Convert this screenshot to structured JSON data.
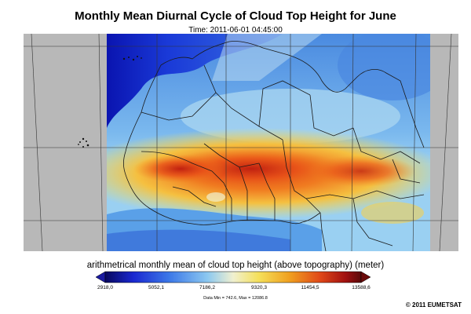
{
  "title": "Monthly Mean Diurnal Cycle of Cloud Top Height for June",
  "subtitle": "Time: 2011-06-01 04:45:00",
  "legend": {
    "label": "arithmetrical monthly mean of cloud top height (above topography) (meter)",
    "ticks": [
      "2918,0",
      "5052,1",
      "7186,2",
      "9320,3",
      "11454,5",
      "13588,6"
    ],
    "data_range": "Data Min = 742.6, Max = 12086.8",
    "colors": [
      "#08085e",
      "#1a28d0",
      "#3c78e8",
      "#8cc8f0",
      "#f0f0d0",
      "#f5e05a",
      "#f0a020",
      "#e04818",
      "#a01010",
      "#5a0a0a"
    ]
  },
  "copyright": "© 2011 EUMETSAT",
  "map": {
    "no_data_color": "#b8b8b8",
    "graticule_color": "#333333",
    "border_color": "#1a1a1a"
  }
}
